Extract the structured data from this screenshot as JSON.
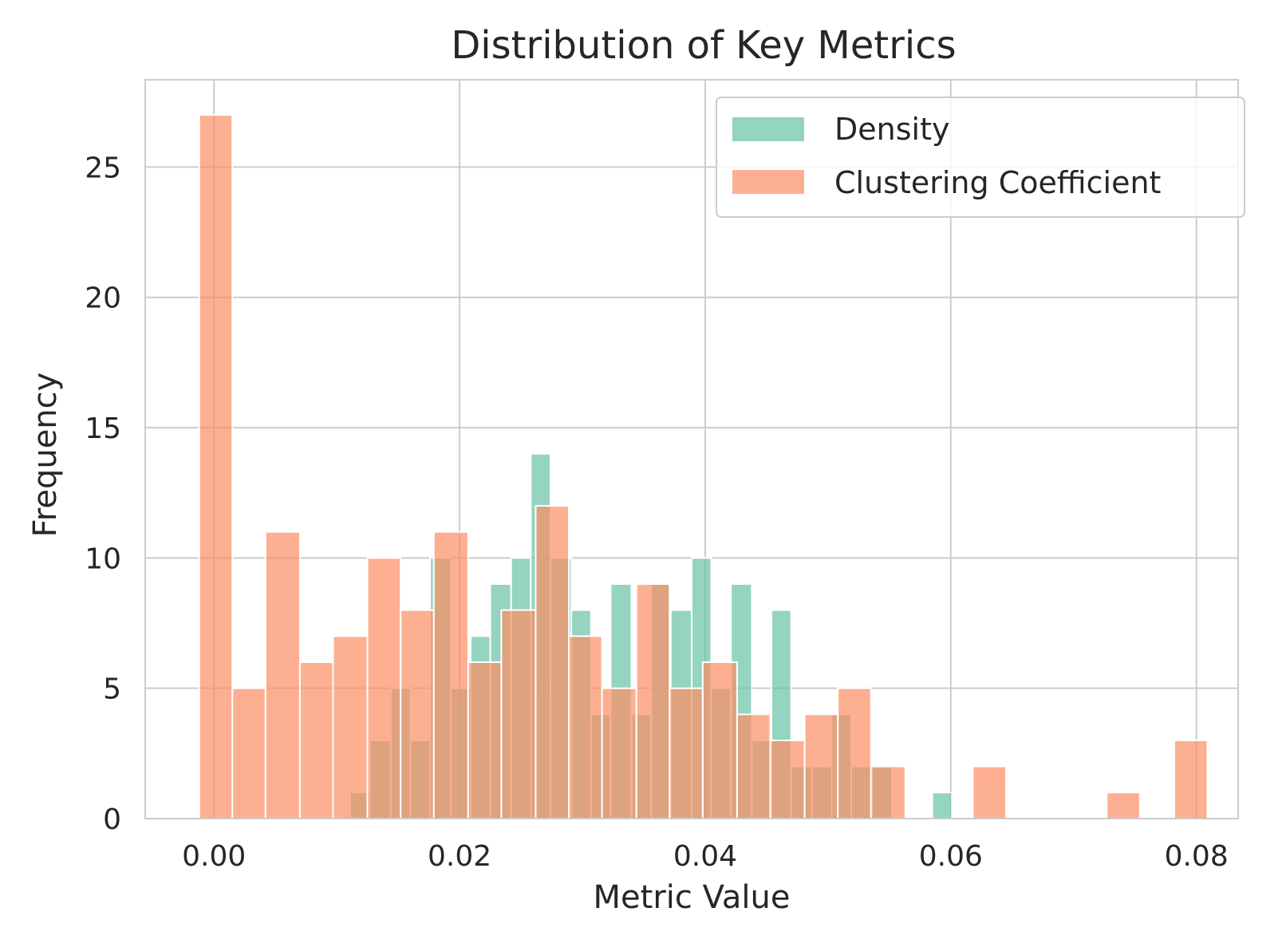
{
  "chart_data": {
    "type": "bar",
    "title": "Distribution of Key Metrics",
    "xlabel": "Metric Value",
    "ylabel": "Frequency",
    "xlim": [
      -0.0056,
      0.0834
    ],
    "ylim": [
      0,
      28.35
    ],
    "xticks": [
      "0.00",
      "0.02",
      "0.04",
      "0.06",
      "0.08"
    ],
    "xtick_values": [
      0.0,
      0.02,
      0.04,
      0.06,
      0.08
    ],
    "yticks": [
      "0",
      "5",
      "10",
      "15",
      "20",
      "25"
    ],
    "ytick_values": [
      0,
      5,
      10,
      15,
      20,
      25
    ],
    "grid": true,
    "legend_position": "top-right",
    "series": [
      {
        "name": "Density",
        "color": "#66c2a5",
        "opacity": 0.7,
        "bin_width": 0.00163,
        "bins": [
          {
            "x0": 0.0111,
            "x1": 0.0127,
            "count": 1
          },
          {
            "x0": 0.0127,
            "x1": 0.0144,
            "count": 3
          },
          {
            "x0": 0.0144,
            "x1": 0.016,
            "count": 5
          },
          {
            "x0": 0.016,
            "x1": 0.0176,
            "count": 3
          },
          {
            "x0": 0.0176,
            "x1": 0.0193,
            "count": 10
          },
          {
            "x0": 0.0193,
            "x1": 0.0209,
            "count": 5
          },
          {
            "x0": 0.0209,
            "x1": 0.0225,
            "count": 7
          },
          {
            "x0": 0.0225,
            "x1": 0.0242,
            "count": 9
          },
          {
            "x0": 0.0242,
            "x1": 0.0258,
            "count": 10
          },
          {
            "x0": 0.0258,
            "x1": 0.0274,
            "count": 14
          },
          {
            "x0": 0.0274,
            "x1": 0.0291,
            "count": 10
          },
          {
            "x0": 0.0291,
            "x1": 0.0307,
            "count": 8
          },
          {
            "x0": 0.0307,
            "x1": 0.0323,
            "count": 4
          },
          {
            "x0": 0.0323,
            "x1": 0.034,
            "count": 9
          },
          {
            "x0": 0.034,
            "x1": 0.0356,
            "count": 4
          },
          {
            "x0": 0.0356,
            "x1": 0.0372,
            "count": 9
          },
          {
            "x0": 0.0372,
            "x1": 0.0389,
            "count": 8
          },
          {
            "x0": 0.0389,
            "x1": 0.0405,
            "count": 10
          },
          {
            "x0": 0.0405,
            "x1": 0.0421,
            "count": 5
          },
          {
            "x0": 0.0421,
            "x1": 0.0438,
            "count": 9
          },
          {
            "x0": 0.0438,
            "x1": 0.0454,
            "count": 3
          },
          {
            "x0": 0.0454,
            "x1": 0.047,
            "count": 8
          },
          {
            "x0": 0.047,
            "x1": 0.0487,
            "count": 2
          },
          {
            "x0": 0.0487,
            "x1": 0.0503,
            "count": 2
          },
          {
            "x0": 0.0503,
            "x1": 0.0519,
            "count": 4
          },
          {
            "x0": 0.0519,
            "x1": 0.0536,
            "count": 2
          },
          {
            "x0": 0.0536,
            "x1": 0.0552,
            "count": 2
          },
          {
            "x0": 0.0585,
            "x1": 0.0601,
            "count": 1
          }
        ]
      },
      {
        "name": "Clustering Coefficient",
        "color": "#fc8d62",
        "opacity": 0.7,
        "bin_width": 0.00274,
        "bins": [
          {
            "x0": -0.0012,
            "x1": 0.0015,
            "count": 27
          },
          {
            "x0": 0.0015,
            "x1": 0.0042,
            "count": 5
          },
          {
            "x0": 0.0042,
            "x1": 0.007,
            "count": 11
          },
          {
            "x0": 0.007,
            "x1": 0.0097,
            "count": 6
          },
          {
            "x0": 0.0097,
            "x1": 0.0125,
            "count": 7
          },
          {
            "x0": 0.0125,
            "x1": 0.0152,
            "count": 10
          },
          {
            "x0": 0.0152,
            "x1": 0.0179,
            "count": 8
          },
          {
            "x0": 0.0179,
            "x1": 0.0207,
            "count": 11
          },
          {
            "x0": 0.0207,
            "x1": 0.0234,
            "count": 6
          },
          {
            "x0": 0.0234,
            "x1": 0.0262,
            "count": 8
          },
          {
            "x0": 0.0262,
            "x1": 0.0289,
            "count": 12
          },
          {
            "x0": 0.0289,
            "x1": 0.0316,
            "count": 7
          },
          {
            "x0": 0.0316,
            "x1": 0.0344,
            "count": 5
          },
          {
            "x0": 0.0344,
            "x1": 0.0371,
            "count": 9
          },
          {
            "x0": 0.0371,
            "x1": 0.0398,
            "count": 5
          },
          {
            "x0": 0.0398,
            "x1": 0.0426,
            "count": 6
          },
          {
            "x0": 0.0426,
            "x1": 0.0453,
            "count": 4
          },
          {
            "x0": 0.0453,
            "x1": 0.0481,
            "count": 3
          },
          {
            "x0": 0.0481,
            "x1": 0.0508,
            "count": 4
          },
          {
            "x0": 0.0508,
            "x1": 0.0535,
            "count": 5
          },
          {
            "x0": 0.0535,
            "x1": 0.0563,
            "count": 2
          },
          {
            "x0": 0.0618,
            "x1": 0.0645,
            "count": 2
          },
          {
            "x0": 0.0727,
            "x1": 0.0754,
            "count": 1
          },
          {
            "x0": 0.0782,
            "x1": 0.0809,
            "count": 3
          }
        ]
      }
    ]
  }
}
